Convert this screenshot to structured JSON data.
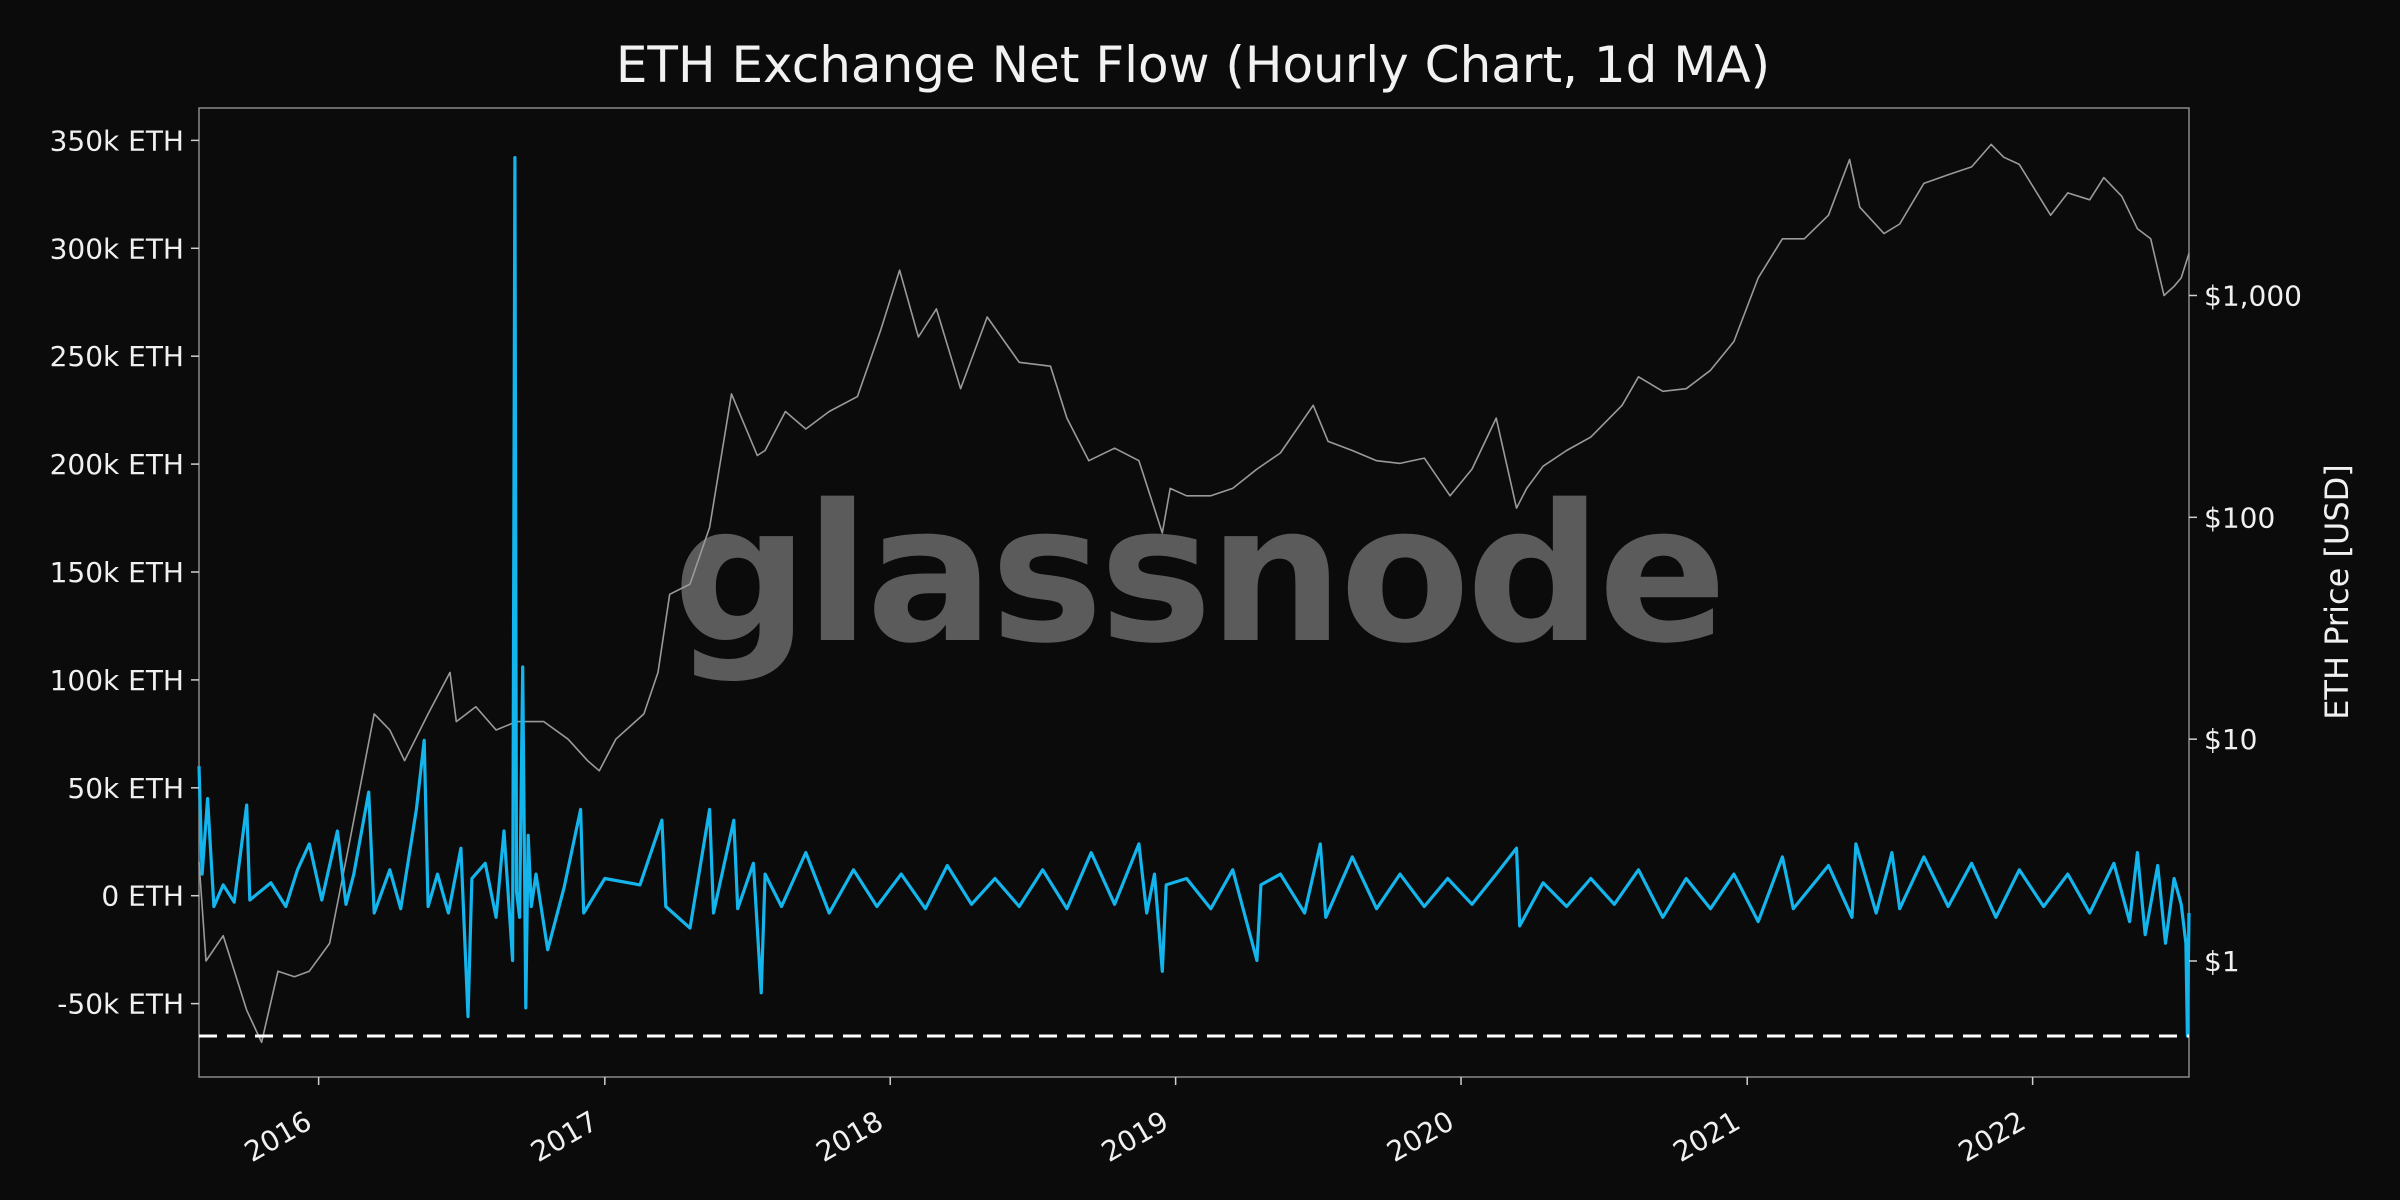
{
  "chart_data": {
    "type": "line",
    "title": "ETH Exchange Net Flow (Hourly Chart, 1d MA)",
    "watermark": "glassnode",
    "left_axis": {
      "ticks": [
        {
          "value": 350000,
          "label": "350k ETH"
        },
        {
          "value": 300000,
          "label": "300k ETH"
        },
        {
          "value": 250000,
          "label": "250k ETH"
        },
        {
          "value": 200000,
          "label": "200k ETH"
        },
        {
          "value": 150000,
          "label": "150k ETH"
        },
        {
          "value": 100000,
          "label": "100k ETH"
        },
        {
          "value": 50000,
          "label": "50k ETH"
        },
        {
          "value": 0,
          "label": "0 ETH"
        },
        {
          "value": -50000,
          "label": "-50k ETH"
        }
      ],
      "range": [
        -84000,
        365000
      ]
    },
    "right_axis": {
      "label": "ETH Price [USD]",
      "scale": "log",
      "ticks": [
        {
          "value": 1,
          "label": "$1"
        },
        {
          "value": 10,
          "label": "$10"
        },
        {
          "value": 100,
          "label": "$100"
        },
        {
          "value": 1000,
          "label": "$1,000"
        }
      ],
      "range": [
        0.3,
        7000
      ]
    },
    "x_axis": {
      "range": [
        "2015-08-01",
        "2022-07-20"
      ],
      "ticks": [
        {
          "value": "2016-01-01",
          "label": "2016"
        },
        {
          "value": "2017-01-01",
          "label": "2017"
        },
        {
          "value": "2018-01-01",
          "label": "2018"
        },
        {
          "value": "2019-01-01",
          "label": "2019"
        },
        {
          "value": "2020-01-01",
          "label": "2020"
        },
        {
          "value": "2021-01-01",
          "label": "2021"
        },
        {
          "value": "2022-01-01",
          "label": "2022"
        }
      ]
    },
    "reference_line": {
      "value": -65000,
      "style": "dashed",
      "color": "#ffffff"
    },
    "colors": {
      "net_flow": "#14b4ec",
      "price": "#9a9a9a",
      "background": "#0b0b0b",
      "frame": "#8a8a8a"
    },
    "series": [
      {
        "axis": "left",
        "points": [
          [
            "2015-08-01",
            60000
          ],
          [
            "2015-08-05",
            10000
          ],
          [
            "2015-08-12",
            45000
          ],
          [
            "2015-08-20",
            -5000
          ],
          [
            "2015-09-01",
            5000
          ],
          [
            "2015-09-15",
            -3000
          ],
          [
            "2015-10-01",
            42000
          ],
          [
            "2015-10-05",
            -2000
          ],
          [
            "2015-11-01",
            6000
          ],
          [
            "2015-11-20",
            -5000
          ],
          [
            "2015-12-05",
            12000
          ],
          [
            "2015-12-20",
            24000
          ],
          [
            "2016-01-05",
            -2000
          ],
          [
            "2016-01-25",
            30000
          ],
          [
            "2016-02-05",
            -4000
          ],
          [
            "2016-02-15",
            10000
          ],
          [
            "2016-03-05",
            48000
          ],
          [
            "2016-03-12",
            -8000
          ],
          [
            "2016-04-01",
            12000
          ],
          [
            "2016-04-15",
            -6000
          ],
          [
            "2016-05-05",
            40000
          ],
          [
            "2016-05-15",
            72000
          ],
          [
            "2016-05-20",
            -5000
          ],
          [
            "2016-06-01",
            10000
          ],
          [
            "2016-06-15",
            -8000
          ],
          [
            "2016-07-01",
            22000
          ],
          [
            "2016-07-10",
            -56000
          ],
          [
            "2016-07-15",
            8000
          ],
          [
            "2016-08-01",
            15000
          ],
          [
            "2016-08-15",
            -10000
          ],
          [
            "2016-08-25",
            30000
          ],
          [
            "2016-09-05",
            -30000
          ],
          [
            "2016-09-08",
            342000
          ],
          [
            "2016-09-10",
            2000
          ],
          [
            "2016-09-14",
            -10000
          ],
          [
            "2016-09-18",
            106000
          ],
          [
            "2016-09-22",
            -52000
          ],
          [
            "2016-09-25",
            28000
          ],
          [
            "2016-09-29",
            -5000
          ],
          [
            "2016-10-05",
            10000
          ],
          [
            "2016-10-20",
            -25000
          ],
          [
            "2016-11-10",
            4000
          ],
          [
            "2016-12-01",
            40000
          ],
          [
            "2016-12-05",
            -8000
          ],
          [
            "2017-01-01",
            8000
          ],
          [
            "2017-02-15",
            5000
          ],
          [
            "2017-03-15",
            35000
          ],
          [
            "2017-03-20",
            -5000
          ],
          [
            "2017-04-20",
            -15000
          ],
          [
            "2017-05-15",
            40000
          ],
          [
            "2017-05-20",
            -8000
          ],
          [
            "2017-06-15",
            35000
          ],
          [
            "2017-06-20",
            -6000
          ],
          [
            "2017-07-10",
            15000
          ],
          [
            "2017-07-20",
            -45000
          ],
          [
            "2017-07-25",
            10000
          ],
          [
            "2017-08-15",
            -5000
          ],
          [
            "2017-09-15",
            20000
          ],
          [
            "2017-10-15",
            -8000
          ],
          [
            "2017-11-15",
            12000
          ],
          [
            "2017-12-15",
            -5000
          ],
          [
            "2018-01-15",
            10000
          ],
          [
            "2018-02-15",
            -6000
          ],
          [
            "2018-03-15",
            14000
          ],
          [
            "2018-04-15",
            -4000
          ],
          [
            "2018-05-15",
            8000
          ],
          [
            "2018-06-15",
            -5000
          ],
          [
            "2018-07-15",
            12000
          ],
          [
            "2018-08-15",
            -6000
          ],
          [
            "2018-09-15",
            20000
          ],
          [
            "2018-10-15",
            -4000
          ],
          [
            "2018-11-05",
            15000
          ],
          [
            "2018-11-15",
            24000
          ],
          [
            "2018-11-25",
            -8000
          ],
          [
            "2018-12-05",
            10000
          ],
          [
            "2018-12-15",
            -35000
          ],
          [
            "2018-12-20",
            5000
          ],
          [
            "2019-01-15",
            8000
          ],
          [
            "2019-02-15",
            -6000
          ],
          [
            "2019-03-15",
            12000
          ],
          [
            "2019-04-15",
            -30000
          ],
          [
            "2019-04-20",
            5000
          ],
          [
            "2019-05-15",
            10000
          ],
          [
            "2019-06-15",
            -8000
          ],
          [
            "2019-07-05",
            24000
          ],
          [
            "2019-07-12",
            -10000
          ],
          [
            "2019-08-15",
            18000
          ],
          [
            "2019-09-15",
            -6000
          ],
          [
            "2019-10-15",
            10000
          ],
          [
            "2019-11-15",
            -5000
          ],
          [
            "2019-12-15",
            8000
          ],
          [
            "2020-01-15",
            -4000
          ],
          [
            "2020-02-15",
            10000
          ],
          [
            "2020-03-12",
            22000
          ],
          [
            "2020-03-16",
            -14000
          ],
          [
            "2020-04-15",
            6000
          ],
          [
            "2020-05-15",
            -5000
          ],
          [
            "2020-06-15",
            8000
          ],
          [
            "2020-07-15",
            -4000
          ],
          [
            "2020-08-15",
            12000
          ],
          [
            "2020-09-15",
            -10000
          ],
          [
            "2020-10-15",
            8000
          ],
          [
            "2020-11-15",
            -6000
          ],
          [
            "2020-12-15",
            10000
          ],
          [
            "2021-01-15",
            -12000
          ],
          [
            "2021-02-15",
            18000
          ],
          [
            "2021-03-01",
            -6000
          ],
          [
            "2021-04-15",
            14000
          ],
          [
            "2021-05-15",
            -10000
          ],
          [
            "2021-05-20",
            24000
          ],
          [
            "2021-06-15",
            -8000
          ],
          [
            "2021-07-05",
            20000
          ],
          [
            "2021-07-15",
            -6000
          ],
          [
            "2021-08-15",
            18000
          ],
          [
            "2021-09-15",
            -5000
          ],
          [
            "2021-10-15",
            15000
          ],
          [
            "2021-11-15",
            -10000
          ],
          [
            "2021-12-15",
            12000
          ],
          [
            "2022-01-15",
            -5000
          ],
          [
            "2022-02-15",
            10000
          ],
          [
            "2022-03-15",
            -8000
          ],
          [
            "2022-04-15",
            15000
          ],
          [
            "2022-05-05",
            -12000
          ],
          [
            "2022-05-15",
            20000
          ],
          [
            "2022-05-25",
            -18000
          ],
          [
            "2022-06-10",
            14000
          ],
          [
            "2022-06-20",
            -22000
          ],
          [
            "2022-07-01",
            8000
          ],
          [
            "2022-07-10",
            -4000
          ],
          [
            "2022-07-16",
            -22000
          ],
          [
            "2022-07-18",
            -65000
          ],
          [
            "2022-07-20",
            -8000
          ]
        ]
      },
      {
        "axis": "right",
        "points": [
          [
            "2015-08-01",
            2.8
          ],
          [
            "2015-08-10",
            1.0
          ],
          [
            "2015-09-01",
            1.3
          ],
          [
            "2015-10-01",
            0.6
          ],
          [
            "2015-10-20",
            0.43
          ],
          [
            "2015-11-10",
            0.9
          ],
          [
            "2015-12-01",
            0.85
          ],
          [
            "2015-12-20",
            0.9
          ],
          [
            "2016-01-15",
            1.2
          ],
          [
            "2016-02-10",
            3.5
          ],
          [
            "2016-03-12",
            13
          ],
          [
            "2016-04-01",
            11
          ],
          [
            "2016-04-20",
            8
          ],
          [
            "2016-05-20",
            13
          ],
          [
            "2016-06-17",
            20
          ],
          [
            "2016-06-25",
            12
          ],
          [
            "2016-07-20",
            14
          ],
          [
            "2016-08-15",
            11
          ],
          [
            "2016-09-10",
            12
          ],
          [
            "2016-10-15",
            12
          ],
          [
            "2016-11-15",
            10
          ],
          [
            "2016-12-10",
            8
          ],
          [
            "2016-12-25",
            7.2
          ],
          [
            "2017-01-15",
            10
          ],
          [
            "2017-02-20",
            13
          ],
          [
            "2017-03-10",
            20
          ],
          [
            "2017-03-25",
            45
          ],
          [
            "2017-04-20",
            50
          ],
          [
            "2017-05-15",
            90
          ],
          [
            "2017-06-12",
            360
          ],
          [
            "2017-07-15",
            190
          ],
          [
            "2017-07-25",
            200
          ],
          [
            "2017-08-20",
            300
          ],
          [
            "2017-09-15",
            250
          ],
          [
            "2017-10-15",
            300
          ],
          [
            "2017-11-20",
            350
          ],
          [
            "2017-12-20",
            700
          ],
          [
            "2018-01-13",
            1300
          ],
          [
            "2018-02-06",
            650
          ],
          [
            "2018-03-01",
            870
          ],
          [
            "2018-04-01",
            380
          ],
          [
            "2018-05-05",
            800
          ],
          [
            "2018-06-15",
            500
          ],
          [
            "2018-07-25",
            480
          ],
          [
            "2018-08-15",
            280
          ],
          [
            "2018-09-12",
            180
          ],
          [
            "2018-10-15",
            205
          ],
          [
            "2018-11-15",
            180
          ],
          [
            "2018-12-15",
            85
          ],
          [
            "2018-12-25",
            135
          ],
          [
            "2019-01-15",
            125
          ],
          [
            "2019-02-15",
            125
          ],
          [
            "2019-03-15",
            135
          ],
          [
            "2019-04-15",
            165
          ],
          [
            "2019-05-15",
            195
          ],
          [
            "2019-06-26",
            320
          ],
          [
            "2019-07-15",
            220
          ],
          [
            "2019-08-15",
            200
          ],
          [
            "2019-09-15",
            180
          ],
          [
            "2019-10-15",
            175
          ],
          [
            "2019-11-15",
            185
          ],
          [
            "2019-12-18",
            125
          ],
          [
            "2020-01-15",
            165
          ],
          [
            "2020-02-15",
            280
          ],
          [
            "2020-03-12",
            110
          ],
          [
            "2020-03-25",
            135
          ],
          [
            "2020-04-15",
            170
          ],
          [
            "2020-05-15",
            200
          ],
          [
            "2020-06-15",
            230
          ],
          [
            "2020-07-25",
            320
          ],
          [
            "2020-08-15",
            430
          ],
          [
            "2020-09-15",
            370
          ],
          [
            "2020-10-15",
            380
          ],
          [
            "2020-11-15",
            460
          ],
          [
            "2020-12-15",
            620
          ],
          [
            "2021-01-15",
            1200
          ],
          [
            "2021-02-15",
            1800
          ],
          [
            "2021-03-15",
            1800
          ],
          [
            "2021-04-15",
            2300
          ],
          [
            "2021-05-12",
            4100
          ],
          [
            "2021-05-25",
            2500
          ],
          [
            "2021-06-25",
            1900
          ],
          [
            "2021-07-15",
            2100
          ],
          [
            "2021-08-15",
            3200
          ],
          [
            "2021-09-15",
            3500
          ],
          [
            "2021-10-15",
            3800
          ],
          [
            "2021-11-09",
            4800
          ],
          [
            "2021-11-25",
            4200
          ],
          [
            "2021-12-15",
            3900
          ],
          [
            "2022-01-24",
            2300
          ],
          [
            "2022-02-15",
            2900
          ],
          [
            "2022-03-15",
            2700
          ],
          [
            "2022-04-02",
            3400
          ],
          [
            "2022-04-25",
            2800
          ],
          [
            "2022-05-15",
            2000
          ],
          [
            "2022-06-01",
            1800
          ],
          [
            "2022-06-18",
            1000
          ],
          [
            "2022-07-01",
            1100
          ],
          [
            "2022-07-10",
            1200
          ],
          [
            "2022-07-20",
            1550
          ]
        ]
      }
    ]
  }
}
